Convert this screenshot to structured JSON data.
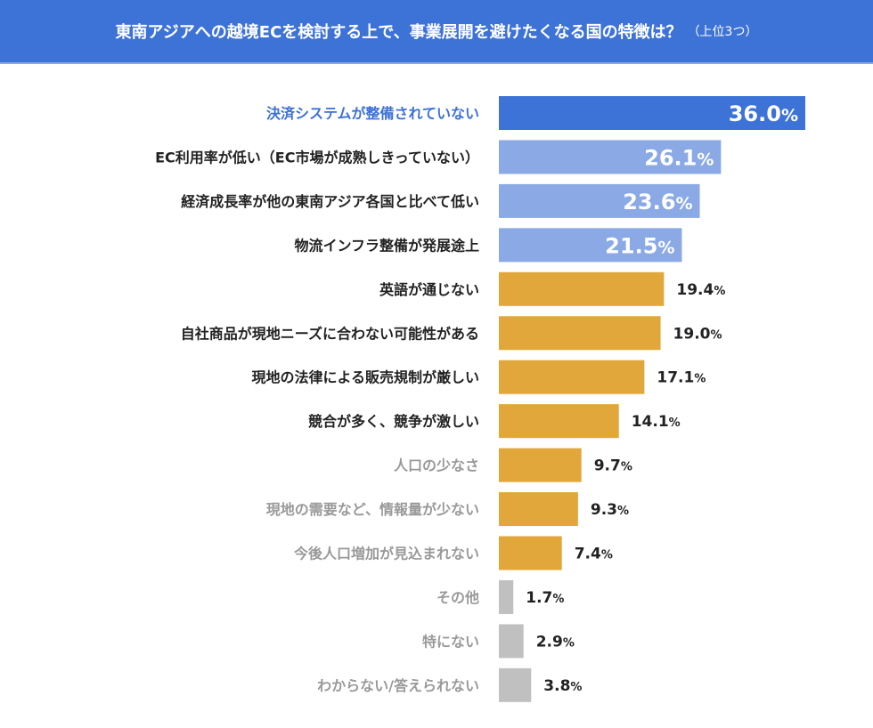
{
  "header": {
    "title": "東南アジアへの越境ECを検討する上で、事業展開を避けたくなる国の特徴は？",
    "subtitle": "（上位3つ）"
  },
  "colors": {
    "top": "#3D72D6",
    "second": "#8AA9E5",
    "mid": "#E2A73A",
    "low": "#C0C0C0",
    "label_dark": "#222222",
    "label_gray": "#999999"
  },
  "chart_data": {
    "type": "bar",
    "orientation": "horizontal",
    "title": "東南アジアへの越境ECを検討する上で、事業展開を避けたくなる国の特徴は？（上位3つ）",
    "xlim": [
      0,
      36
    ],
    "categories": [
      "決済システムが整備されていない",
      "EC利用率が低い（EC市場が成熟しきっていない）",
      "経済成長率が他の東南アジア各国と比べて低い",
      "物流インフラ整備が発展途上",
      "英語が通じない",
      "自社商品が現地ニーズに合わない可能性がある",
      "現地の法律による販売規制が厳しい",
      "競合が多く、競争が激しい",
      "人口の少なさ",
      "現地の需要など、情報量が少ない",
      "今後人口増加が見込まれない",
      "その他",
      "特にない",
      "わからない/答えられない"
    ],
    "values": [
      36.0,
      26.1,
      23.6,
      21.5,
      19.4,
      19.0,
      17.1,
      14.1,
      9.7,
      9.3,
      7.4,
      1.7,
      2.9,
      3.8
    ],
    "groups": [
      "top",
      "second",
      "second",
      "second",
      "mid",
      "mid",
      "mid",
      "mid",
      "mid",
      "mid",
      "mid",
      "low",
      "low",
      "low"
    ],
    "label_styles": [
      "top",
      "dark",
      "dark",
      "dark",
      "dark",
      "dark",
      "dark",
      "dark",
      "gray",
      "gray",
      "gray",
      "gray",
      "gray",
      "gray"
    ],
    "value_suffix": "%"
  }
}
